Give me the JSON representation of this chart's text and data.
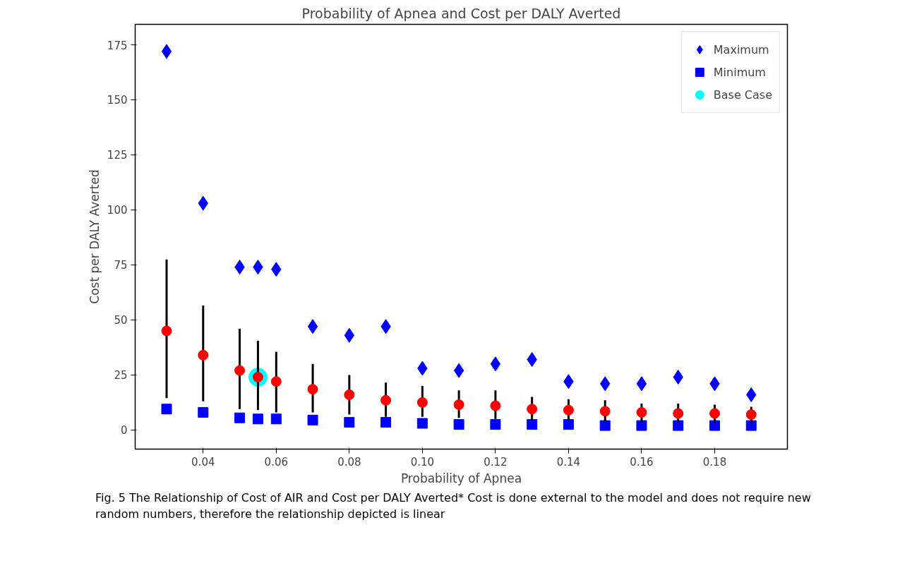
{
  "chart_data": {
    "type": "scatter",
    "title": "Probability of Apnea and Cost per DALY Averted",
    "xlabel": "Probability of Apnea",
    "ylabel": "Cost per DALY Averted",
    "x": [
      0.03,
      0.04,
      0.05,
      0.055,
      0.06,
      0.07,
      0.08,
      0.09,
      0.1,
      0.11,
      0.12,
      0.13,
      0.14,
      0.15,
      0.16,
      0.17,
      0.18,
      0.19
    ],
    "series": [
      {
        "name": "Maximum",
        "color": "#0000ff",
        "marker": "diamond",
        "values": [
          172,
          103,
          74,
          74,
          73,
          47,
          43,
          47,
          28,
          27,
          30,
          32,
          22,
          21,
          21,
          24,
          21,
          16
        ]
      },
      {
        "name": "Minimum",
        "color": "#0000ff",
        "marker": "square",
        "values": [
          9.5,
          8,
          5.5,
          5,
          5,
          4.5,
          3.5,
          3.5,
          3,
          2.5,
          2.5,
          2.5,
          2.5,
          2,
          2,
          2,
          2,
          2
        ]
      },
      {
        "name": "Base Case",
        "color": "#00ffff",
        "marker": "circle",
        "x": [
          0.055
        ],
        "values": [
          24
        ]
      },
      {
        "color": "#ff0000",
        "marker": "circle",
        "values": [
          45,
          34,
          27,
          24,
          22,
          18.5,
          16,
          13.5,
          12.5,
          11.5,
          11,
          9.5,
          9,
          8.5,
          8,
          7.5,
          7.5,
          7
        ],
        "errors": [
          [
            14.5,
            77.5
          ],
          [
            13,
            56.5
          ],
          [
            9.5,
            46
          ],
          [
            9,
            40.5
          ],
          [
            8,
            35.5
          ],
          [
            8,
            30
          ],
          [
            7,
            25
          ],
          [
            6,
            21.5
          ],
          [
            6,
            20
          ],
          [
            5.5,
            18
          ],
          [
            5,
            18
          ],
          [
            4.5,
            15
          ],
          [
            4.5,
            14
          ],
          [
            4,
            13.5
          ],
          [
            3.5,
            12
          ],
          [
            3.5,
            12
          ],
          [
            3,
            11.5
          ],
          [
            3,
            10.5
          ]
        ]
      }
    ],
    "xlim": [
      0.0214,
      0.1999
    ],
    "ylim": [
      -8.7,
      184.3
    ],
    "xticks": [
      {
        "value": 0.04,
        "label": "0.04"
      },
      {
        "value": 0.06,
        "label": "0.06"
      },
      {
        "value": 0.08,
        "label": "0.08"
      },
      {
        "value": 0.1,
        "label": "0.10"
      },
      {
        "value": 0.12,
        "label": "0.12"
      },
      {
        "value": 0.14,
        "label": "0.14"
      },
      {
        "value": 0.16,
        "label": "0.16"
      },
      {
        "value": 0.18,
        "label": "0.18"
      }
    ],
    "yticks": [
      0,
      25,
      50,
      75,
      100,
      125,
      150,
      175
    ],
    "grid": false,
    "legend": "top right",
    "annotations": [
      "Fig. 5 The Relationship of Cost of AIR and Cost per DALY Averted* Cost is done external to the model and does not require new random numbers, therefore the relationship depicted is linear"
    ]
  }
}
